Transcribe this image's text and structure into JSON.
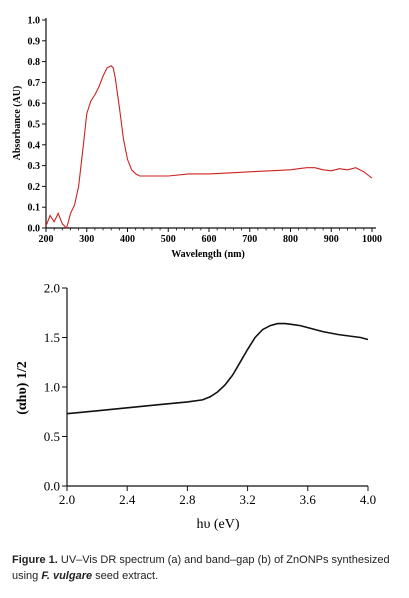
{
  "chart_data": [
    {
      "type": "line",
      "xlabel": "Wavelength (nm)",
      "ylabel": "Absorbance (AU)",
      "xlim": [
        200,
        1000
      ],
      "ylim": [
        0.0,
        1.0
      ],
      "xticks": [
        "200",
        "300",
        "400",
        "500",
        "600",
        "700",
        "800",
        "900",
        "1000"
      ],
      "yticks": [
        "0.0",
        "0.1",
        "0.2",
        "0.3",
        "0.4",
        "0.5",
        "0.6",
        "0.7",
        "0.8",
        "0.9",
        "1.0"
      ],
      "series": [
        {
          "color": "#cc2222",
          "x": [
            200,
            210,
            220,
            230,
            240,
            250,
            255,
            260,
            270,
            280,
            290,
            300,
            310,
            320,
            330,
            340,
            350,
            360,
            365,
            370,
            380,
            390,
            400,
            410,
            420,
            430,
            440,
            450,
            475,
            500,
            550,
            600,
            650,
            700,
            750,
            800,
            820,
            840,
            860,
            880,
            900,
            920,
            940,
            960,
            980,
            990,
            1000
          ],
          "y": [
            0.01,
            0.06,
            0.03,
            0.07,
            0.02,
            0.0,
            0.03,
            0.07,
            0.11,
            0.2,
            0.37,
            0.55,
            0.61,
            0.64,
            0.68,
            0.73,
            0.77,
            0.78,
            0.77,
            0.72,
            0.58,
            0.43,
            0.33,
            0.28,
            0.26,
            0.25,
            0.25,
            0.25,
            0.25,
            0.25,
            0.26,
            0.26,
            0.265,
            0.27,
            0.275,
            0.28,
            0.285,
            0.29,
            0.29,
            0.28,
            0.275,
            0.285,
            0.28,
            0.29,
            0.27,
            0.255,
            0.24
          ]
        }
      ]
    },
    {
      "type": "line",
      "xlabel": "hυ (eV)",
      "ylabel": "(αhυ) 1/2",
      "xlim": [
        2.0,
        4.0
      ],
      "ylim": [
        0.0,
        2.0
      ],
      "xticks": [
        "2.0",
        "2.4",
        "2.8",
        "3.2",
        "3.6",
        "4.0"
      ],
      "yticks": [
        "0.0",
        "0.5",
        "1.0",
        "1.5",
        "2.0"
      ],
      "series": [
        {
          "color": "#111111",
          "x": [
            2.0,
            2.2,
            2.4,
            2.6,
            2.8,
            2.9,
            2.95,
            3.0,
            3.05,
            3.1,
            3.15,
            3.2,
            3.25,
            3.3,
            3.35,
            3.4,
            3.45,
            3.5,
            3.55,
            3.6,
            3.7,
            3.8,
            3.85,
            3.9,
            3.95,
            4.0
          ],
          "y": [
            0.73,
            0.76,
            0.79,
            0.82,
            0.85,
            0.87,
            0.9,
            0.95,
            1.02,
            1.12,
            1.25,
            1.38,
            1.5,
            1.58,
            1.62,
            1.64,
            1.64,
            1.63,
            1.62,
            1.6,
            1.56,
            1.53,
            1.52,
            1.51,
            1.5,
            1.48
          ]
        }
      ]
    }
  ],
  "caption": {
    "label": "Figure 1.",
    "text_before": " UV–Vis DR spectrum (a) and band–gap (b) of ZnONPs synthesized using ",
    "species": "F. vulgare",
    "text_after": " seed extract."
  }
}
